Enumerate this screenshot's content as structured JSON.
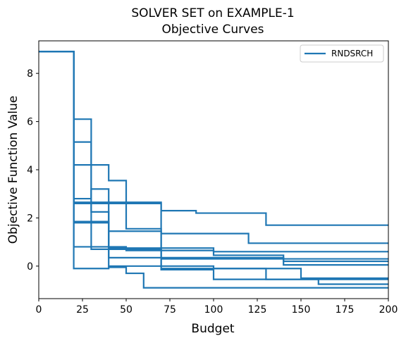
{
  "chart_data": {
    "type": "line",
    "step": "post",
    "title": "SOLVER SET on EXAMPLE-1",
    "subtitle": "Objective Curves",
    "xlabel": "Budget",
    "ylabel": "Objective Function Value",
    "xlim": [
      0,
      200
    ],
    "ylim": [
      -1.35,
      9.35
    ],
    "xticks": [
      0,
      25,
      50,
      75,
      100,
      125,
      150,
      175,
      200
    ],
    "yticks": [
      0,
      2,
      4,
      6,
      8
    ],
    "grid": false,
    "legend": {
      "position": "top-right",
      "entries": [
        "RNDSRCH"
      ]
    },
    "color": "#1f77b4",
    "series": [
      {
        "name": "RNDSRCH",
        "points": [
          [
            0,
            8.9
          ],
          [
            20,
            8.9
          ],
          [
            20,
            6.1
          ],
          [
            30,
            6.1
          ],
          [
            30,
            2.25
          ],
          [
            40,
            2.25
          ],
          [
            40,
            0.75
          ],
          [
            100,
            0.75
          ],
          [
            100,
            0.6
          ],
          [
            200,
            0.6
          ]
        ]
      },
      {
        "name": "RNDSRCH",
        "points": [
          [
            0,
            8.9
          ],
          [
            20,
            8.9
          ],
          [
            20,
            5.15
          ],
          [
            30,
            5.15
          ],
          [
            30,
            0.7
          ],
          [
            70,
            0.7
          ],
          [
            70,
            0.3
          ],
          [
            200,
            0.3
          ]
        ]
      },
      {
        "name": "RNDSRCH",
        "points": [
          [
            0,
            8.9
          ],
          [
            20,
            8.9
          ],
          [
            20,
            4.2
          ],
          [
            40,
            4.2
          ],
          [
            40,
            3.55
          ],
          [
            50,
            3.55
          ],
          [
            50,
            1.55
          ],
          [
            70,
            1.55
          ],
          [
            70,
            1.35
          ],
          [
            80,
            1.35
          ],
          [
            80,
            1.35
          ],
          [
            120,
            1.35
          ],
          [
            120,
            0.95
          ],
          [
            200,
            0.95
          ]
        ]
      },
      {
        "name": "RNDSRCH",
        "points": [
          [
            0,
            8.9
          ],
          [
            20,
            8.9
          ],
          [
            20,
            2.8
          ],
          [
            30,
            2.8
          ],
          [
            30,
            3.2
          ],
          [
            40,
            3.2
          ],
          [
            40,
            0.35
          ],
          [
            140,
            0.35
          ],
          [
            140,
            0.05
          ],
          [
            200,
            0.05
          ]
        ]
      },
      {
        "name": "RNDSRCH",
        "points": [
          [
            0,
            8.9
          ],
          [
            20,
            8.9
          ],
          [
            20,
            2.6
          ],
          [
            70,
            2.6
          ],
          [
            70,
            2.3
          ],
          [
            90,
            2.3
          ],
          [
            90,
            2.2
          ],
          [
            130,
            2.2
          ],
          [
            130,
            1.7
          ],
          [
            200,
            1.7
          ]
        ]
      },
      {
        "name": "RNDSRCH",
        "points": [
          [
            0,
            8.9
          ],
          [
            20,
            8.9
          ],
          [
            20,
            1.8
          ],
          [
            40,
            1.8
          ],
          [
            40,
            1.45
          ],
          [
            70,
            1.45
          ],
          [
            70,
            -0.15
          ],
          [
            100,
            -0.15
          ],
          [
            100,
            -0.55
          ],
          [
            200,
            -0.55
          ]
        ]
      },
      {
        "name": "RNDSRCH",
        "points": [
          [
            0,
            8.9
          ],
          [
            20,
            8.9
          ],
          [
            20,
            0.8
          ],
          [
            50,
            0.8
          ],
          [
            50,
            0.65
          ],
          [
            100,
            0.65
          ],
          [
            100,
            0.45
          ],
          [
            140,
            0.45
          ],
          [
            140,
            0.2
          ],
          [
            200,
            0.2
          ]
        ]
      },
      {
        "name": "RNDSRCH",
        "points": [
          [
            0,
            8.9
          ],
          [
            20,
            8.9
          ],
          [
            20,
            -0.1
          ],
          [
            40,
            -0.1
          ],
          [
            40,
            -0.05
          ],
          [
            50,
            -0.05
          ],
          [
            50,
            -0.3
          ],
          [
            60,
            -0.3
          ],
          [
            60,
            -0.9
          ],
          [
            200,
            -0.9
          ]
        ]
      },
      {
        "name": "RNDSRCH",
        "points": [
          [
            0,
            8.9
          ],
          [
            20,
            8.9
          ],
          [
            20,
            2.65
          ],
          [
            70,
            2.65
          ],
          [
            70,
            -0.1
          ],
          [
            130,
            -0.1
          ],
          [
            130,
            -0.55
          ],
          [
            160,
            -0.55
          ],
          [
            160,
            -0.75
          ],
          [
            200,
            -0.75
          ]
        ]
      },
      {
        "name": "RNDSRCH",
        "points": [
          [
            0,
            8.9
          ],
          [
            20,
            8.9
          ],
          [
            20,
            1.85
          ],
          [
            40,
            1.85
          ],
          [
            40,
            0.0
          ],
          [
            100,
            0.0
          ],
          [
            100,
            -0.1
          ],
          [
            150,
            -0.1
          ],
          [
            150,
            -0.5
          ],
          [
            200,
            -0.5
          ]
        ]
      }
    ]
  }
}
